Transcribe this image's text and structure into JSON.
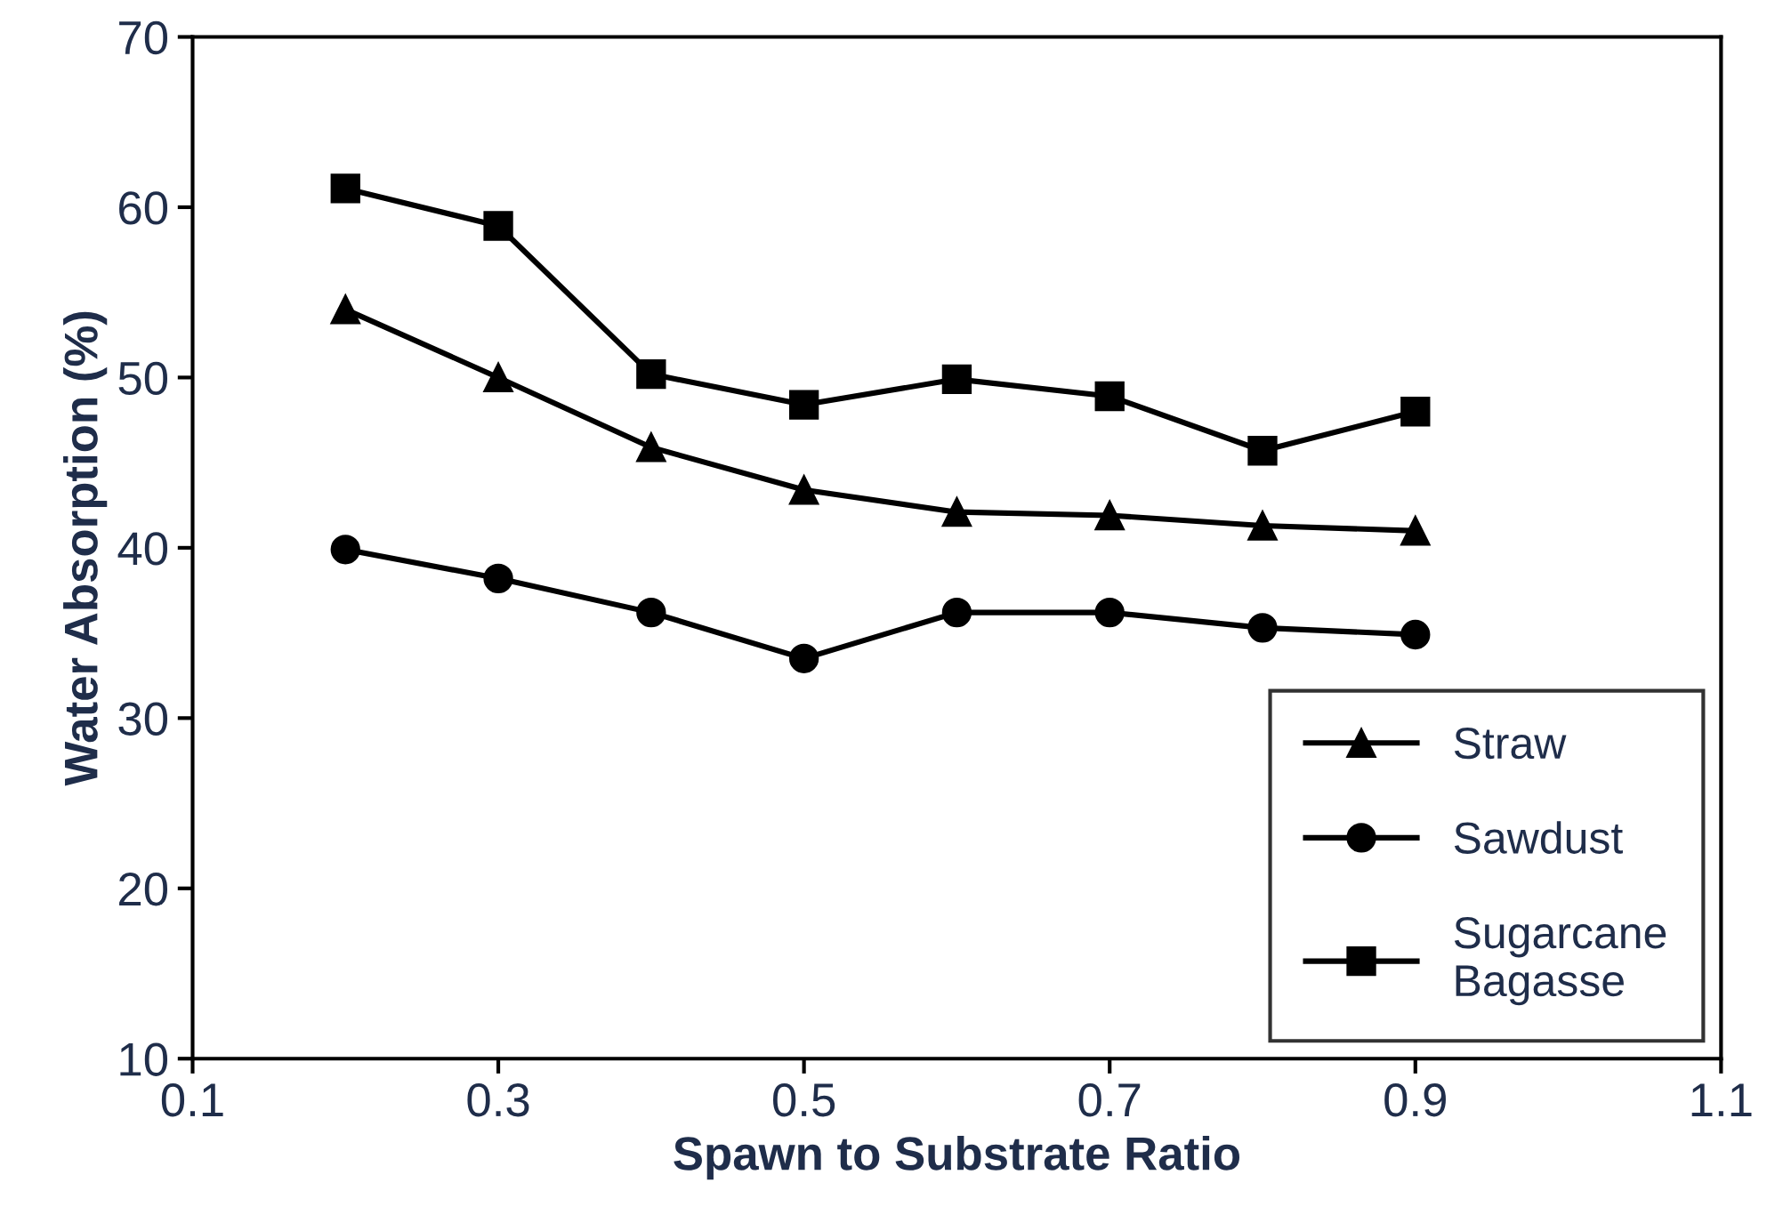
{
  "chart_data": {
    "type": "line",
    "xlabel": "Spawn to Substrate Ratio",
    "ylabel": "Water Absorption (%)",
    "x": [
      0.2,
      0.3,
      0.4,
      0.5,
      0.6,
      0.7,
      0.8,
      0.9
    ],
    "series": [
      {
        "name": "Straw",
        "color": "#000000",
        "marker": "triangle",
        "values": [
          54.0,
          50.0,
          45.9,
          43.4,
          42.1,
          41.9,
          41.3,
          41.0
        ]
      },
      {
        "name": "Sawdust",
        "color": "#000000",
        "marker": "circle",
        "values": [
          39.9,
          38.2,
          36.2,
          33.5,
          36.2,
          36.2,
          35.3,
          34.9
        ]
      },
      {
        "name": "Sugarcane Bagasse",
        "color": "#000000",
        "marker": "square",
        "values": [
          61.1,
          58.9,
          50.2,
          48.4,
          49.9,
          48.9,
          45.7,
          48.0
        ]
      }
    ],
    "xlim": [
      0.1,
      1.1
    ],
    "xticks": [
      {
        "value": 0.1,
        "label": "0.1"
      },
      {
        "value": 0.3,
        "label": "0.3"
      },
      {
        "value": 0.5,
        "label": "0.5"
      },
      {
        "value": 0.7,
        "label": "0.7"
      },
      {
        "value": 0.9,
        "label": "0.9"
      },
      {
        "value": 1.1,
        "label": "1.1"
      }
    ],
    "ylim": [
      10,
      70
    ],
    "yticks": [
      10,
      20,
      30,
      40,
      50,
      60,
      70
    ],
    "grid": false,
    "legend": "bottom right",
    "line_style": "solid"
  }
}
